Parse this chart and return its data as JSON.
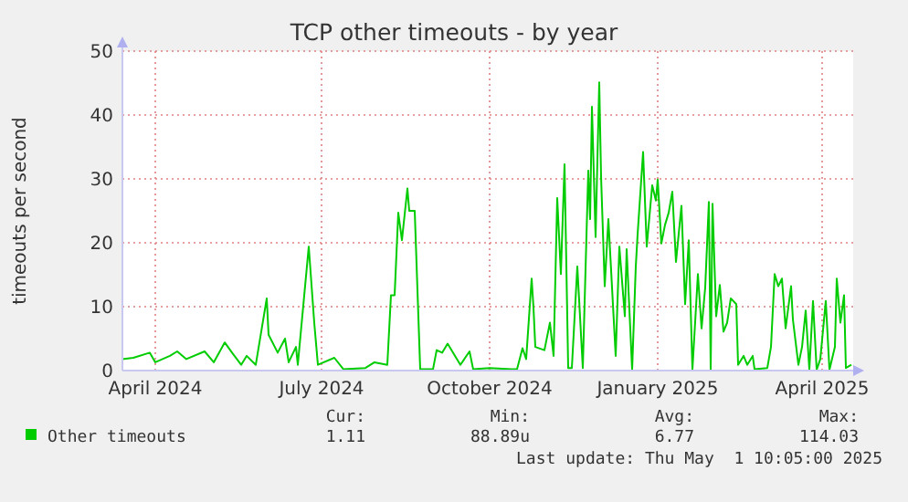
{
  "chart_data": {
    "type": "line",
    "title": "TCP other timeouts - by year",
    "ylabel": "timeouts per second",
    "x": [
      "2024-03-29",
      "2024-04-04",
      "2024-04-13",
      "2024-04-16",
      "2024-04-24",
      "2024-04-28",
      "2024-05-03",
      "2024-05-13",
      "2024-05-18",
      "2024-05-24",
      "2024-05-28",
      "2024-06-02",
      "2024-06-05",
      "2024-06-10",
      "2024-06-16",
      "2024-06-17",
      "2024-06-22",
      "2024-06-26",
      "2024-06-28",
      "2024-07-02",
      "2024-07-03",
      "2024-07-09",
      "2024-07-12",
      "2024-07-14",
      "2024-07-23",
      "2024-07-28",
      "2024-08-09",
      "2024-08-14",
      "2024-08-21",
      "2024-08-23",
      "2024-08-25",
      "2024-08-27",
      "2024-08-29",
      "2024-09-01",
      "2024-09-02",
      "2024-09-05",
      "2024-09-08",
      "2024-09-15",
      "2024-09-17",
      "2024-09-20",
      "2024-09-23",
      "2024-09-30",
      "2024-10-05",
      "2024-10-07",
      "2024-10-16",
      "2024-10-28",
      "2024-10-31",
      "2024-11-03",
      "2024-11-05",
      "2024-11-08",
      "2024-11-09",
      "2024-11-10",
      "2024-11-15",
      "2024-11-18",
      "2024-11-20",
      "2024-11-22",
      "2024-11-24",
      "2024-11-26",
      "2024-11-28",
      "2024-11-30",
      "2024-12-03",
      "2024-12-06",
      "2024-12-09",
      "2024-12-10",
      "2024-12-11",
      "2024-12-13",
      "2024-12-15",
      "2024-12-16",
      "2024-12-18",
      "2024-12-20",
      "2024-12-24",
      "2024-12-26",
      "2024-12-29",
      "2024-12-30",
      "2025-01-02",
      "2025-01-04",
      "2025-01-05",
      "2025-01-08",
      "2025-01-10",
      "2025-01-13",
      "2025-01-15",
      "2025-01-16",
      "2025-01-18",
      "2025-01-20",
      "2025-01-22",
      "2025-01-24",
      "2025-01-26",
      "2025-01-29",
      "2025-01-31",
      "2025-02-02",
      "2025-02-04",
      "2025-02-07",
      "2025-02-09",
      "2025-02-11",
      "2025-02-13",
      "2025-02-14",
      "2025-02-15",
      "2025-02-17",
      "2025-02-19",
      "2025-02-21",
      "2025-02-23",
      "2025-02-25",
      "2025-02-28",
      "2025-03-01",
      "2025-03-04",
      "2025-03-06",
      "2025-03-09",
      "2025-03-10",
      "2025-03-17",
      "2025-03-19",
      "2025-03-21",
      "2025-03-23",
      "2025-03-25",
      "2025-03-27",
      "2025-03-30",
      "2025-03-31",
      "2025-04-03",
      "2025-04-05",
      "2025-04-07",
      "2025-04-09",
      "2025-04-11",
      "2025-04-13",
      "2025-04-15",
      "2025-04-18",
      "2025-04-20",
      "2025-04-23",
      "2025-04-24",
      "2025-04-26",
      "2025-04-28",
      "2025-04-29",
      "2025-05-02"
    ],
    "series": [
      {
        "name": "Other timeouts",
        "color": "#00cc00",
        "values": [
          1.8,
          2,
          2.8,
          1.3,
          2.3,
          3,
          1.8,
          3,
          1.3,
          4.4,
          2.8,
          0.9,
          2.3,
          0.9,
          11.3,
          5.6,
          2.8,
          5,
          1.3,
          3.7,
          0.9,
          19.4,
          7.5,
          0.9,
          2,
          0.2,
          0.4,
          1.3,
          0.9,
          11.8,
          11.8,
          24.7,
          20.4,
          28.5,
          25,
          25,
          0.2,
          0.2,
          3.2,
          2.8,
          4.2,
          0.9,
          3,
          0.2,
          0.4,
          0.2,
          0.2,
          3.5,
          1.8,
          14.4,
          9.9,
          3.7,
          3.2,
          7.5,
          2.3,
          27,
          15.1,
          32.3,
          0.4,
          0.4,
          16.3,
          0.4,
          31.3,
          23.7,
          41.3,
          20.9,
          45.1,
          30.4,
          13.2,
          23.7,
          2.3,
          19.4,
          8.5,
          19,
          0.1,
          16.3,
          21.3,
          34.2,
          19.4,
          29,
          26.6,
          29.9,
          19.9,
          22.8,
          24.7,
          28,
          17,
          25.8,
          10.4,
          20.4,
          0.1,
          15.1,
          6.6,
          13,
          26.4,
          0.1,
          26.1,
          8.5,
          13.4,
          6.1,
          7.5,
          11.3,
          10.4,
          0.9,
          2.3,
          0.9,
          2.3,
          0.2,
          0.4,
          3.7,
          15.1,
          13.2,
          14.4,
          6.6,
          13.2,
          8,
          0.9,
          3.7,
          9.4,
          0.1,
          10.9,
          0.1,
          1.8,
          10.9,
          0.1,
          3.7,
          14.4,
          7.5,
          11.8,
          0.4,
          0.9
        ]
      }
    ],
    "xlim": [
      "2024-03-29",
      "2025-05-03"
    ],
    "xticks": [
      {
        "value": "2024-04-16",
        "label": "April 2024"
      },
      {
        "value": "2024-07-16",
        "label": "July 2024"
      },
      {
        "value": "2024-10-16",
        "label": "October 2024"
      },
      {
        "value": "2025-01-16",
        "label": "January 2025"
      },
      {
        "value": "2025-04-16",
        "label": "April 2025"
      }
    ],
    "ylim": [
      0,
      50
    ],
    "yticks": [
      0,
      10,
      20,
      30,
      40,
      50
    ],
    "grid": true,
    "legend": "bottom left",
    "marker": "none",
    "line_style": "solid",
    "annotations": [
      "Cur:",
      "Min:",
      "Avg:",
      "Max:",
      "1.11",
      "88.89u",
      "6.77",
      "114.03",
      "Last update: Thu May  1 10:05:00 2025"
    ]
  }
}
